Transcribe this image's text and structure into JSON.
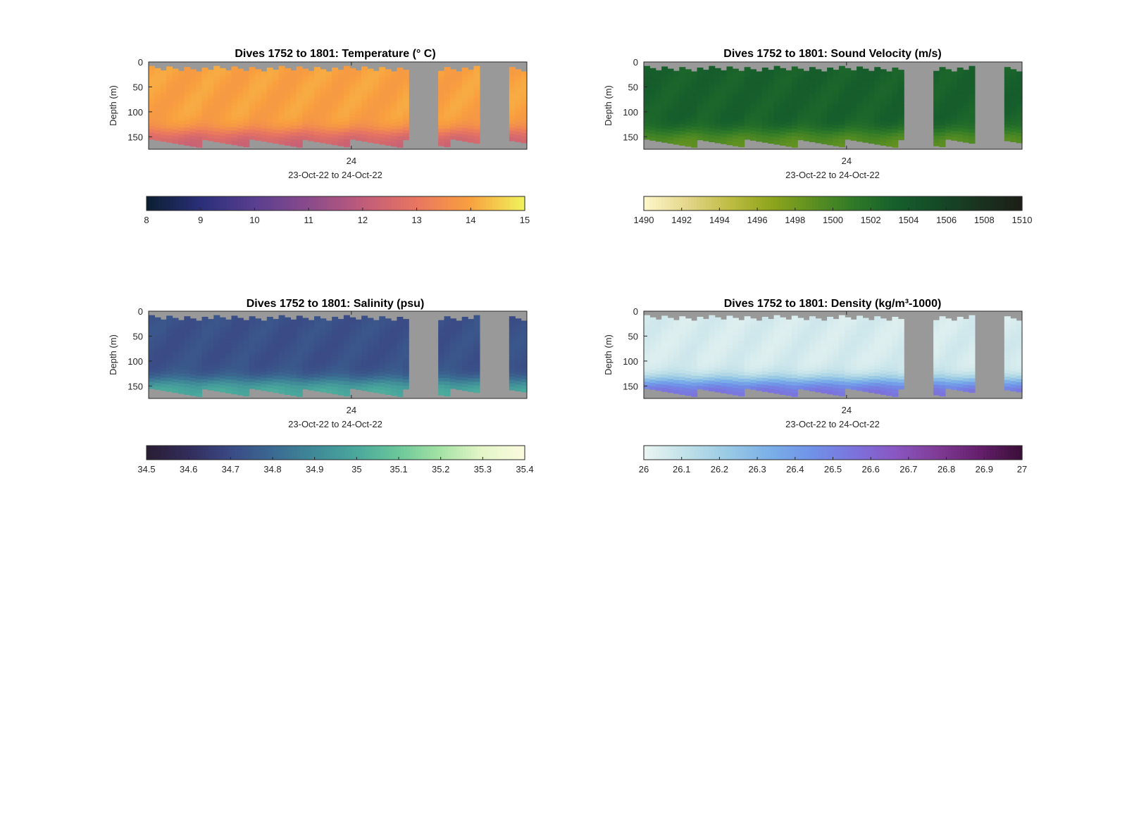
{
  "figure": {
    "background": "#ffffff",
    "no_data_color": "#999999"
  },
  "chart_data": [
    {
      "type": "heatmap",
      "title": "Dives 1752 to 1801: Temperature (° C)",
      "xlabel": "23-Oct-22 to 24-Oct-22",
      "ylabel": "Depth (m)",
      "xticks": [
        "24"
      ],
      "yticks": [
        0,
        50,
        100,
        150
      ],
      "ylim": [
        0,
        175
      ],
      "colorbar": {
        "range": [
          8,
          15
        ],
        "ticks": [
          "8",
          "9",
          "10",
          "11",
          "12",
          "13",
          "14",
          "15"
        ],
        "colors": [
          "#0b1f33",
          "#2b2f7a",
          "#5a3f8f",
          "#8a4a8c",
          "#bf5c7a",
          "#e87561",
          "#f9a03f",
          "#f0f25b"
        ]
      },
      "profile": {
        "surface_value": 14.0,
        "deep_value": 12.3,
        "transition_depth": 140
      },
      "gaps": [
        [
          0.68,
          0.76
        ],
        [
          0.88,
          0.96
        ]
      ]
    },
    {
      "type": "heatmap",
      "title": "Dives 1752 to 1801: Sound Velocity (m/s)",
      "xlabel": "23-Oct-22 to 24-Oct-22",
      "ylabel": "Depth (m)",
      "xticks": [
        "24"
      ],
      "yticks": [
        0,
        50,
        100,
        150
      ],
      "ylim": [
        0,
        175
      ],
      "colorbar": {
        "range": [
          1490,
          1510
        ],
        "ticks": [
          "1490",
          "1492",
          "1494",
          "1496",
          "1498",
          "1500",
          "1502",
          "1504",
          "1506",
          "1508",
          "1510"
        ],
        "colors": [
          "#fdf6c8",
          "#e4d68a",
          "#bfbd45",
          "#8fa51d",
          "#5e9021",
          "#2f7a28",
          "#165f2c",
          "#154a27",
          "#1a3320",
          "#1c1f17"
        ]
      },
      "profile": {
        "surface_value": 1503.2,
        "deep_value": 1499.0,
        "transition_depth": 140
      },
      "gaps": [
        [
          0.68,
          0.76
        ],
        [
          0.88,
          0.96
        ]
      ]
    },
    {
      "type": "heatmap",
      "title": "Dives 1752 to 1801: Salinity (psu)",
      "xlabel": "23-Oct-22 to 24-Oct-22",
      "ylabel": "Depth (m)",
      "xticks": [
        "24"
      ],
      "yticks": [
        0,
        50,
        100,
        150
      ],
      "ylim": [
        0,
        175
      ],
      "colorbar": {
        "range": [
          34.5,
          35.4
        ],
        "ticks": [
          "34.5",
          "34.6",
          "34.7",
          "34.8",
          "34.9",
          "35",
          "35.1",
          "35.2",
          "35.3",
          "35.4"
        ],
        "colors": [
          "#2a1e34",
          "#322d5c",
          "#3a4a85",
          "#3b6a92",
          "#3f8a98",
          "#4aa89c",
          "#6bc79a",
          "#a4e2a4",
          "#e4f6c8",
          "#fbfadf"
        ]
      },
      "profile": {
        "surface_value": 34.72,
        "deep_value": 35.02,
        "transition_depth": 140
      },
      "gaps": [
        [
          0.68,
          0.76
        ],
        [
          0.88,
          0.96
        ]
      ]
    },
    {
      "type": "heatmap",
      "title": "Dives 1752 to 1801: Density (kg/m³-1000)",
      "xlabel": "23-Oct-22 to 24-Oct-22",
      "ylabel": "Depth (m)",
      "xticks": [
        "24"
      ],
      "yticks": [
        0,
        50,
        100,
        150
      ],
      "ylim": [
        0,
        175
      ],
      "colorbar": {
        "range": [
          26,
          27
        ],
        "ticks": [
          "26",
          "26.1",
          "26.2",
          "26.3",
          "26.4",
          "26.5",
          "26.6",
          "26.7",
          "26.8",
          "26.9",
          "27"
        ],
        "colors": [
          "#e9f4f2",
          "#bfe0e8",
          "#99c9e4",
          "#7aafe8",
          "#7092e8",
          "#7b73dd",
          "#8a57c2",
          "#7f3b96",
          "#651f6c",
          "#3c0f3a"
        ]
      },
      "profile": {
        "surface_value": 26.05,
        "deep_value": 26.58,
        "transition_depth": 140
      },
      "gaps": [
        [
          0.68,
          0.76
        ],
        [
          0.88,
          0.96
        ]
      ]
    }
  ]
}
